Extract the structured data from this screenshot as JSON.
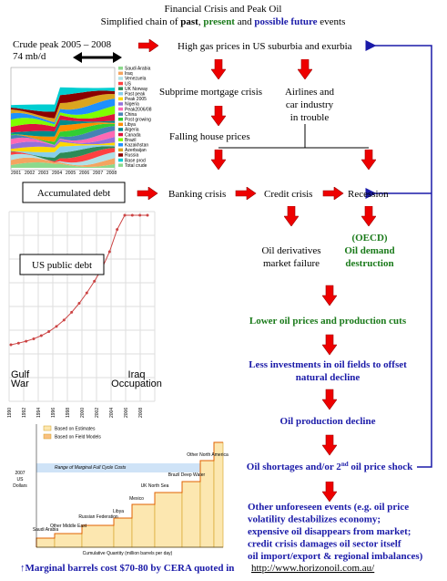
{
  "header": {
    "title": "Financial Crisis and Peak Oil",
    "subtitle": [
      "Simplified chain of ",
      "past",
      ", ",
      "present",
      " and ",
      "possible future",
      " events"
    ]
  },
  "crude": {
    "label_1": "Crude peak  2005 – 2008",
    "label_2": "74 mb/d",
    "legend": [
      "Saudi Arabia",
      "Iraq",
      "Venezuela",
      "US",
      "UK Norway",
      "Past peak",
      "Peak 2005",
      "Nigeria",
      "Peak2006/08",
      "China",
      "Post growing",
      "Libya",
      "Algeria",
      "Canada",
      "Brazil",
      "Kazakhstan",
      "Azerbaijan",
      "Russia",
      "Base prod",
      "Total crude"
    ],
    "years": [
      "2001",
      "2002",
      "2003",
      "2004",
      "2005",
      "2006",
      "2007",
      "2008"
    ]
  },
  "nodes": {
    "gas": "High gas prices in US suburbia and exurbia",
    "subprime": "Subprime mortgage crisis",
    "airlines": [
      "Airlines and",
      "car industry",
      "in trouble"
    ],
    "house": "Falling house prices",
    "debt": "Accumulated debt",
    "banking": "Banking crisis",
    "credit": "Credit crisis",
    "recession": "Recession",
    "derivatives": [
      "Oil derivatives",
      "market failure"
    ],
    "oecd": [
      "(OECD)",
      "Oil demand",
      "destruction"
    ],
    "lower": "Lower oil prices and production cuts",
    "invest": [
      "Less investments in oil fields to offset",
      "natural decline"
    ],
    "decline": "Oil production decline",
    "shortage": [
      "Oil shortages and/or 2",
      "nd",
      " oil price shock"
    ],
    "other": [
      "Other unforeseen events  (e.g. oil price",
      "volatility destabilizes  economy;",
      "expensive oil disappears from  market;",
      "credit crisis damages oil sector  itself",
      "oil import/export & regional imbalances)"
    ]
  },
  "debt_chart": {
    "label": "US public debt",
    "gulf": [
      "Gulf",
      "War"
    ],
    "iraq": [
      "Iraq",
      "Occupation"
    ],
    "years": [
      "1990",
      "1992",
      "1994",
      "1996",
      "1998",
      "2000",
      "2002",
      "2004",
      "2006",
      "2008"
    ]
  },
  "cost_chart": {
    "legend": [
      "Based on Estimates",
      "Based on Field Models"
    ],
    "band": "Range of Marginal Full Cycle Costs",
    "ylabel": [
      "2007",
      "US",
      "Dollars"
    ],
    "regions": [
      "Saudi Arabia",
      "Other Middle East",
      "Russian Federation",
      "Libya",
      "Mexico",
      "UK North Sea",
      "Brazil Deep Water",
      "Other North America"
    ],
    "xlabel": "Cumulative Quantity (million barrels per day)"
  },
  "footer": {
    "note": "↑Marginal barrels cost $70-80 by CERA quoted in",
    "link": "http://www.horizonoil.com.au/"
  }
}
